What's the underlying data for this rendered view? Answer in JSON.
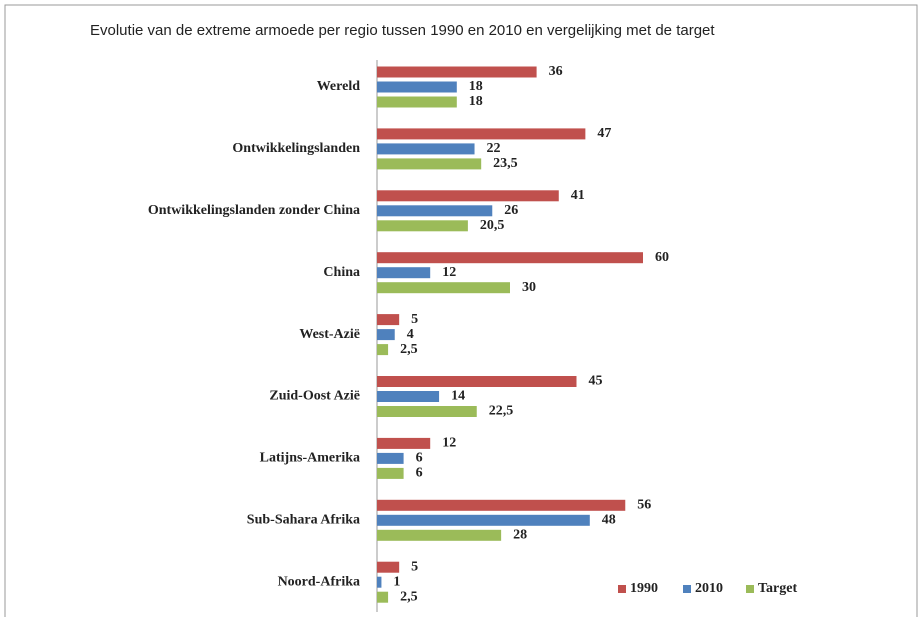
{
  "chart_data": {
    "type": "hbar",
    "title": "Evolutie van de extreme armoede per regio tussen 1990 en 2010 en vergelijking met de target",
    "categories": [
      "Wereld",
      "Ontwikkelingslanden",
      "Ontwikkelingslanden zonder China",
      "China",
      "West-Azië",
      "Zuid-Oost Azië",
      "Latijns-Amerika",
      "Sub-Sahara Afrika",
      "Noord-Afrika"
    ],
    "series": [
      {
        "name": "1990",
        "color": "#c0504d",
        "values": [
          36,
          47,
          41,
          60,
          5,
          45,
          12,
          56,
          5
        ]
      },
      {
        "name": "2010",
        "color": "#4f81bd",
        "values": [
          18,
          22,
          26,
          12,
          4,
          14,
          6,
          48,
          1
        ]
      },
      {
        "name": "Target",
        "color": "#9bbb59",
        "values": [
          18,
          23.5,
          20.5,
          30,
          2.5,
          22.5,
          6,
          28,
          2.5
        ],
        "value_labels": [
          "18",
          "23,5",
          "20,5",
          "30",
          "2,5",
          "22,5",
          "6",
          "28",
          "2,5"
        ]
      }
    ],
    "legend": "lower right"
  }
}
